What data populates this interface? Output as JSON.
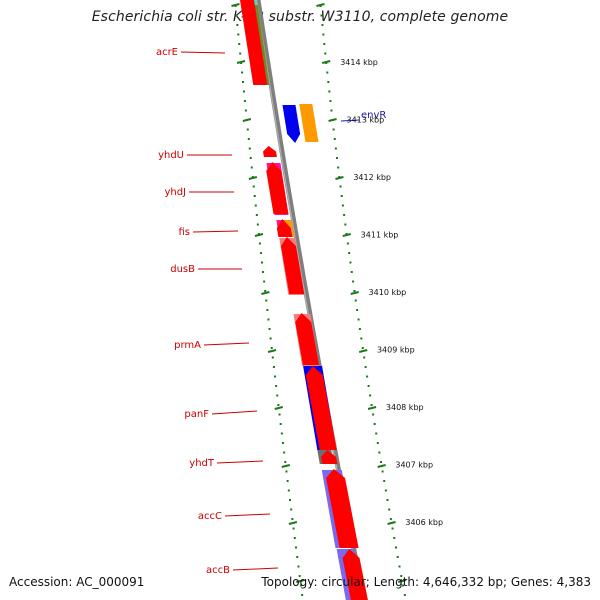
{
  "title": "Escherichia coli str. K-12 substr. W3110, complete genome",
  "accession": "Accession: AC_000091",
  "summary": "Topology: circular; Length: 4,646,332 bp; Genes: 4,383",
  "colors": {
    "backbone": "#7f7f7f",
    "ticks": "#1a7a1a",
    "olive": "#6b8e23",
    "red": "#ff0000",
    "blue": "#0000ee",
    "orange": "#ff9900",
    "pink": "#ff1493",
    "salmon": "#f08080",
    "violet": "#7b68ee",
    "gray": "#6e6e6e",
    "teal": "#40e0d0",
    "label_red": "#cc0000",
    "label_blue": "#1a1aa8"
  },
  "scale_labels": [
    "3414 kbp",
    "3413 kbp",
    "3412 kbp",
    "3411 kbp",
    "3410 kbp",
    "3409 kbp",
    "3408 kbp",
    "3407 kbp",
    "3406 kbp"
  ],
  "genes": [
    {
      "label": "acrE",
      "color": "olive"
    },
    {
      "label": "envR",
      "color": "blue"
    },
    {
      "label": "yhdU",
      "color": "red"
    },
    {
      "label": "yhdJ",
      "color": "pink"
    },
    {
      "label": "fis",
      "color": "pink"
    },
    {
      "label": "dusB",
      "color": "salmon"
    },
    {
      "label": "prmA",
      "color": "salmon"
    },
    {
      "label": "panF",
      "color": "blue"
    },
    {
      "label": "yhdT",
      "color": "gray"
    },
    {
      "label": "accC",
      "color": "violet"
    },
    {
      "label": "accB",
      "color": "violet"
    }
  ]
}
